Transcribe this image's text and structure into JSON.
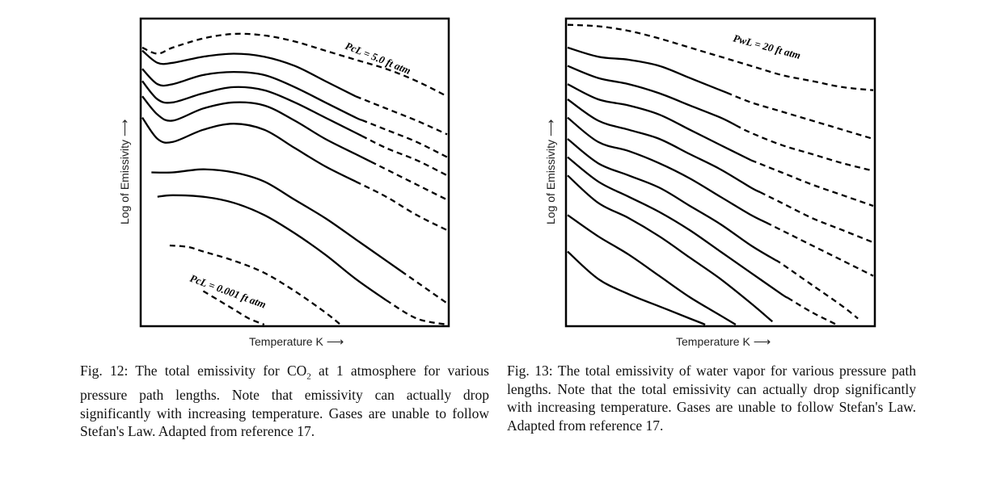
{
  "figures": [
    {
      "id": "fig12",
      "ylabel": "Log of Emissivity",
      "xlabel": "Temperature K",
      "annotation_top": "PcL = 5.0 ft atm",
      "annotation_bottom": "PcL = 0.001 ft atm",
      "caption_before_sub": "Fig. 12: The total emissivity for CO",
      "caption_sub": "2",
      "caption_after_sub": " at 1 atmosphere for various pressure path lengths. Note that emissivity can actually drop significantly with increasing temperature. Gases are unable to follow Stefan's Law. Adapted from reference 17."
    },
    {
      "id": "fig13",
      "ylabel": "Log of Emissivity",
      "xlabel": "Temperature K",
      "annotation_top": "PwL = 20 ft atm",
      "caption": "Fig. 13: The total emissivity of water vapor for various pressure path lengths. Note that the total emissivity can actually drop significantly with increasing temperature. Gases are unable to follow Stefan's Law. Adapted from reference 17."
    }
  ],
  "chart_data": [
    {
      "type": "line",
      "xlabel": "Temperature K",
      "ylabel": "Log of Emissivity",
      "xlim": [
        0,
        100
      ],
      "ylim": [
        0,
        100
      ],
      "grid": false,
      "series": [
        {
          "name": "PcL = 5.0 ft atm",
          "style": "dashed",
          "x": [
            0,
            5,
            10,
            20,
            30,
            40,
            50,
            60,
            70,
            80,
            90,
            100
          ],
          "y": [
            91,
            89,
            91,
            94,
            95.5,
            95,
            93,
            90,
            87,
            84,
            80,
            75
          ]
        },
        {
          "style": "solid-then-dashed",
          "dash_from_x": 70,
          "x": [
            0,
            5,
            10,
            20,
            30,
            40,
            50,
            60,
            70,
            80,
            90,
            100
          ],
          "y": [
            90,
            86,
            86,
            88,
            89,
            88,
            85,
            80,
            75,
            71,
            67,
            62.5
          ]
        },
        {
          "style": "solid-then-dashed",
          "dash_from_x": 72,
          "x": [
            0,
            5,
            10,
            20,
            30,
            40,
            50,
            60,
            70,
            80,
            90,
            100
          ],
          "y": [
            84,
            79,
            79,
            82,
            83,
            82,
            78,
            73,
            68,
            64,
            60,
            55
          ]
        },
        {
          "style": "solid-then-dashed",
          "dash_from_x": 72,
          "x": [
            0,
            5,
            10,
            20,
            30,
            40,
            50,
            60,
            70,
            80,
            90,
            100
          ],
          "y": [
            80,
            74,
            73,
            76,
            78,
            77,
            73,
            68,
            63,
            58,
            54,
            49
          ]
        },
        {
          "style": "solid-then-dashed",
          "dash_from_x": 75,
          "x": [
            0,
            5,
            10,
            20,
            30,
            40,
            50,
            60,
            70,
            80,
            90,
            100
          ],
          "y": [
            75,
            69,
            67,
            71,
            73,
            72,
            67,
            61,
            56,
            51,
            46,
            41
          ]
        },
        {
          "style": "solid-then-dashed",
          "dash_from_x": 70,
          "x": [
            0,
            5,
            10,
            20,
            30,
            40,
            50,
            60,
            70,
            80,
            90,
            100
          ],
          "y": [
            68,
            61,
            60,
            64,
            66,
            64,
            58,
            52,
            47,
            42,
            36,
            31
          ]
        },
        {
          "style": "solid-then-dashed",
          "dash_from_x": 85,
          "x": [
            3,
            10,
            20,
            30,
            40,
            50,
            60,
            70,
            80,
            90,
            100
          ],
          "y": [
            50,
            50,
            51,
            50,
            47,
            41,
            35,
            28,
            21,
            14,
            7
          ]
        },
        {
          "style": "solid-then-dashed",
          "dash_from_x": 80,
          "x": [
            5,
            10,
            20,
            30,
            40,
            50,
            60,
            70,
            80,
            90,
            100
          ],
          "y": [
            42,
            42.5,
            42,
            40,
            36,
            30,
            23,
            15,
            8,
            2,
            -2
          ]
        },
        {
          "style": "dashed",
          "x": [
            9,
            15,
            20,
            30,
            40,
            50,
            60,
            65
          ],
          "y": [
            26,
            25.5,
            24,
            21,
            17,
            11,
            4,
            0
          ]
        },
        {
          "name": "PcL = 0.001 ft atm",
          "style": "dashed",
          "x": [
            20,
            25,
            30,
            35,
            40
          ],
          "y": [
            11,
            8,
            5,
            2,
            0
          ]
        }
      ]
    },
    {
      "type": "line",
      "xlabel": "Temperature K",
      "ylabel": "Log of Emissivity",
      "xlim": [
        0,
        100
      ],
      "ylim": [
        0,
        100
      ],
      "grid": false,
      "series": [
        {
          "name": "PwL = 20 ft atm",
          "style": "dashed",
          "x": [
            0,
            10,
            20,
            30,
            40,
            50,
            60,
            70,
            80,
            90,
            100
          ],
          "y": [
            98.5,
            98,
            96.5,
            94,
            91,
            88,
            85,
            82,
            80,
            78,
            77
          ]
        },
        {
          "style": "solid-then-dashed",
          "dash_from_x": 52,
          "x": [
            0,
            10,
            20,
            30,
            40,
            50,
            60,
            70,
            80,
            90,
            100
          ],
          "y": [
            91,
            88,
            87,
            85,
            81,
            77,
            73,
            70,
            67,
            64,
            61
          ]
        },
        {
          "style": "solid-then-dashed",
          "dash_from_x": 55,
          "x": [
            0,
            10,
            20,
            30,
            40,
            50,
            60,
            70,
            80,
            90,
            100
          ],
          "y": [
            85,
            81,
            79,
            76,
            72,
            68,
            63,
            59,
            56,
            53,
            50.5
          ]
        },
        {
          "style": "solid-then-dashed",
          "dash_from_x": 60,
          "x": [
            0,
            10,
            20,
            30,
            40,
            50,
            60,
            70,
            80,
            90,
            100
          ],
          "y": [
            79,
            74,
            72,
            69,
            64,
            59,
            54,
            50,
            46,
            42.5,
            39
          ]
        },
        {
          "style": "solid-then-dashed",
          "dash_from_x": 63,
          "x": [
            0,
            10,
            20,
            30,
            40,
            50,
            60,
            70,
            80,
            90,
            100
          ],
          "y": [
            74,
            67,
            64,
            61,
            56,
            51,
            45,
            40,
            35,
            31,
            27
          ]
        },
        {
          "style": "solid-then-dashed",
          "dash_from_x": 65,
          "x": [
            0,
            10,
            20,
            30,
            40,
            50,
            60,
            70,
            80,
            90,
            100
          ],
          "y": [
            68,
            60,
            57,
            53,
            48,
            42,
            36,
            31,
            26,
            21,
            16
          ]
        },
        {
          "style": "solid-then-dashed",
          "dash_from_x": 68,
          "x": [
            0,
            10,
            20,
            30,
            40,
            50,
            60,
            70,
            80,
            90,
            95
          ],
          "y": [
            61,
            53,
            49,
            45,
            39,
            33,
            26,
            20,
            13,
            6,
            2
          ]
        },
        {
          "style": "solid-then-dashed",
          "dash_from_x": 72,
          "x": [
            0,
            10,
            20,
            30,
            40,
            50,
            60,
            70,
            80,
            88
          ],
          "y": [
            55,
            47,
            42,
            37,
            31,
            24,
            17,
            10,
            4,
            0
          ]
        },
        {
          "style": "solid",
          "x": [
            0,
            10,
            20,
            30,
            40,
            50,
            60,
            67
          ],
          "y": [
            49,
            40,
            35,
            29,
            22,
            15,
            7,
            1
          ]
        },
        {
          "style": "solid",
          "x": [
            0,
            10,
            20,
            30,
            40,
            50,
            55
          ],
          "y": [
            36,
            29,
            23,
            16,
            9,
            3,
            0
          ]
        },
        {
          "style": "solid",
          "x": [
            0,
            10,
            20,
            30,
            40,
            45
          ],
          "y": [
            24,
            15,
            10,
            6,
            2,
            0
          ]
        }
      ]
    }
  ]
}
